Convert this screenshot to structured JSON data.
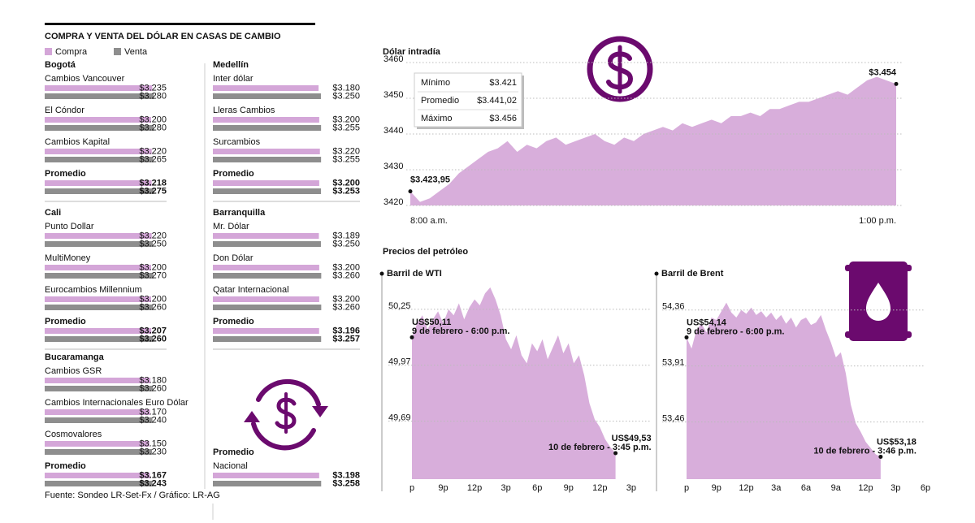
{
  "chart_data": [
    {
      "type": "hbar-groups",
      "title": "COMPRA Y VENTA DEL DÓLAR EN CASAS DE CAMBIO",
      "source": "Fuente: Sondeo LR-Set-Fx / Gráfico: LR-AG",
      "xlim": [
        0,
        3300
      ],
      "series": [
        {
          "name": "Compra",
          "color": "#d4a6d8"
        },
        {
          "name": "Venta",
          "color": "#8e8e8e"
        }
      ],
      "groups": [
        {
          "name": "Bogotá",
          "categories": [
            "Cambios Vancouver",
            "El Cóndor",
            "Cambios Kapital",
            "Promedio"
          ],
          "values": [
            [
              3235,
              3200,
              3220,
              3218
            ],
            [
              3280,
              3280,
              3265,
              3275
            ]
          ],
          "value_labels": [
            [
              "$3.235",
              "$3.200",
              "$3.220",
              "$3.218"
            ],
            [
              "$3.280",
              "$3.280",
              "$3.265",
              "$3.275"
            ]
          ]
        },
        {
          "name": "Cali",
          "categories": [
            "Punto Dollar",
            "MultiMoney",
            "Eurocambios Millennium",
            "Promedio"
          ],
          "values": [
            [
              3220,
              3200,
              3200,
              3207
            ],
            [
              3250,
              3270,
              3260,
              3260
            ]
          ],
          "value_labels": [
            [
              "$3.220",
              "$3.200",
              "$3.200",
              "$3.207"
            ],
            [
              "$3.250",
              "$3.270",
              "$3.260",
              "$3.260"
            ]
          ]
        },
        {
          "name": "Bucaramanga",
          "categories": [
            "Cambios GSR",
            "Cambios Internacionales Euro Dólar",
            "Cosmovalores",
            "Promedio"
          ],
          "values": [
            [
              3180,
              3170,
              3150,
              3167
            ],
            [
              3260,
              3240,
              3230,
              3243
            ]
          ],
          "value_labels": [
            [
              "$3.180",
              "$3.170",
              "$3.150",
              "$3.167"
            ],
            [
              "$3.260",
              "$3.240",
              "$3.230",
              "$3.243"
            ]
          ]
        },
        {
          "name": "Medellín",
          "categories": [
            "Inter dólar",
            "Lleras Cambios",
            "Surcambios",
            "Promedio"
          ],
          "values": [
            [
              3180,
              3200,
              3220,
              3200
            ],
            [
              3250,
              3255,
              3255,
              3253
            ]
          ],
          "value_labels": [
            [
              "$3.180",
              "$3.200",
              "$3.220",
              "$3.200"
            ],
            [
              "$3.250",
              "$3.255",
              "$3.255",
              "$3.253"
            ]
          ]
        },
        {
          "name": "Barranquilla",
          "categories": [
            "Mr. Dólar",
            "Don Dólar",
            "Qatar Internacional",
            "Promedio"
          ],
          "values": [
            [
              3189,
              3200,
              3200,
              3196
            ],
            [
              3250,
              3260,
              3260,
              3257
            ]
          ],
          "value_labels": [
            [
              "$3.189",
              "$3.200",
              "$3.200",
              "$3.196"
            ],
            [
              "$3.250",
              "$3.260",
              "$3.260",
              "$3.257"
            ]
          ]
        },
        {
          "name": "Promedio",
          "categories": [
            "Nacional"
          ],
          "values": [
            [
              3198
            ],
            [
              3258
            ]
          ],
          "value_labels": [
            [
              "$3.198"
            ],
            [
              "$3.258"
            ]
          ]
        }
      ]
    },
    {
      "type": "area",
      "title": "Dólar intradía",
      "color": "#d8aedb",
      "grid": true,
      "x": [
        8.0,
        8.1,
        8.2,
        8.3,
        8.4,
        8.5,
        8.6,
        8.7,
        8.8,
        8.9,
        9.0,
        9.1,
        9.2,
        9.3,
        9.4,
        9.5,
        9.6,
        9.7,
        9.8,
        9.9,
        10.0,
        10.1,
        10.2,
        10.3,
        10.4,
        10.5,
        10.6,
        10.7,
        10.8,
        10.9,
        11.0,
        11.1,
        11.2,
        11.3,
        11.4,
        11.5,
        11.6,
        11.7,
        11.8,
        11.9,
        12.0,
        12.1,
        12.2,
        12.3,
        12.4,
        12.5,
        12.6,
        12.7,
        12.8,
        12.9,
        13.0
      ],
      "values": [
        3423.95,
        3421,
        3422,
        3424,
        3426,
        3429,
        3431,
        3433,
        3435,
        3436,
        3438,
        3435,
        3437,
        3436,
        3438,
        3439,
        3437,
        3438,
        3439,
        3440,
        3438,
        3437,
        3439,
        3438,
        3440,
        3441,
        3442,
        3441,
        3443,
        3442,
        3443,
        3444,
        3443,
        3445,
        3445,
        3446,
        3445,
        3447,
        3447,
        3448,
        3449,
        3449,
        3450,
        3451,
        3452,
        3451,
        3453,
        3455,
        3456,
        3455,
        3454
      ],
      "xlim": [
        8,
        13
      ],
      "xticks": [
        {
          "value": 8,
          "label": "8:00 a.m."
        },
        {
          "value": 13,
          "label": "1:00 p.m."
        }
      ],
      "ylim": [
        3420,
        3460
      ],
      "yticks": [
        3420,
        3430,
        3440,
        3450,
        3460
      ],
      "annotations": [
        {
          "x": 8,
          "y": 3423.95,
          "label": "$3.423,95"
        },
        {
          "x": 13,
          "y": 3454,
          "label": "$3.454"
        }
      ],
      "stats": [
        [
          "Mínimo",
          "$3.421"
        ],
        [
          "Promedio",
          "$3.441,02"
        ],
        [
          "Máximo",
          "$3.456"
        ]
      ]
    },
    {
      "type": "area",
      "heading": "Precios del petróleo",
      "title": "Barril de WTI",
      "color": "#d8aedb",
      "grid": true,
      "x": [
        0,
        0.5,
        1,
        1.5,
        2,
        2.5,
        3,
        3.5,
        4,
        4.5,
        5,
        5.5,
        6,
        6.5,
        7,
        7.5,
        8,
        8.5,
        9,
        9.5,
        10,
        10.5,
        11,
        11.5,
        12,
        12.5,
        13,
        13.5,
        14,
        14.5,
        15,
        15.5,
        16,
        16.5,
        17,
        17.5,
        18,
        18.5,
        19,
        19.5
      ],
      "values": [
        50.11,
        50.18,
        50.22,
        50.15,
        50.2,
        50.24,
        50.18,
        50.25,
        50.22,
        50.28,
        50.2,
        50.26,
        50.3,
        50.27,
        50.33,
        50.36,
        50.3,
        50.22,
        50.1,
        50.05,
        50.12,
        50.02,
        49.98,
        50.08,
        50.04,
        50.1,
        50.0,
        50.06,
        50.12,
        50.03,
        50.08,
        49.98,
        50.02,
        49.92,
        49.78,
        49.7,
        49.66,
        49.6,
        49.56,
        49.53
      ],
      "xlim": [
        0,
        22.8
      ],
      "xticks": [
        {
          "value": 0,
          "label": "p"
        },
        {
          "value": 3,
          "label": "9p"
        },
        {
          "value": 6,
          "label": "12p"
        },
        {
          "value": 9,
          "label": "3p"
        },
        {
          "value": 12,
          "label": "6p"
        },
        {
          "value": 15,
          "label": "9p"
        },
        {
          "value": 18,
          "label": "12p"
        },
        {
          "value": 21,
          "label": "3p"
        }
      ],
      "ylim": [
        49.4,
        50.4
      ],
      "yticks": [
        {
          "value": 49.69,
          "label": "49,69"
        },
        {
          "value": 49.97,
          "label": "49,97"
        },
        {
          "value": 50.25,
          "label": "50,25"
        }
      ],
      "annotations": [
        {
          "x": 0,
          "y": 50.11,
          "label": "US$50,11",
          "note": "9 de febrero - 6:00 p.m."
        },
        {
          "x": 19.5,
          "y": 49.53,
          "label": "US$49,53",
          "note": "10 de febrero - 3:45 p.m."
        }
      ]
    },
    {
      "type": "area",
      "title": "Barril de Brent",
      "color": "#d8aedb",
      "grid": true,
      "x": [
        0,
        0.5,
        1,
        1.5,
        2,
        2.5,
        3,
        3.5,
        4,
        4.5,
        5,
        5.5,
        6,
        6.5,
        7,
        7.5,
        8,
        8.5,
        9,
        9.5,
        10,
        10.5,
        11,
        11.5,
        12,
        12.5,
        13,
        13.5,
        14,
        14.5,
        15,
        15.5,
        16,
        16.5,
        17,
        17.5,
        18,
        18.5,
        19,
        19.5
      ],
      "values": [
        54.14,
        54.05,
        54.2,
        54.25,
        54.18,
        54.3,
        54.28,
        54.35,
        54.42,
        54.34,
        54.3,
        54.36,
        54.33,
        54.38,
        54.32,
        54.35,
        54.3,
        54.34,
        54.28,
        54.32,
        54.25,
        54.3,
        54.22,
        54.28,
        54.3,
        54.24,
        54.26,
        54.32,
        54.2,
        54.1,
        53.98,
        54.02,
        53.85,
        53.6,
        53.45,
        53.38,
        53.3,
        53.25,
        53.2,
        53.18
      ],
      "xlim": [
        0,
        24
      ],
      "xticks": [
        {
          "value": 0,
          "label": "p"
        },
        {
          "value": 3,
          "label": "9p"
        },
        {
          "value": 6,
          "label": "12p"
        },
        {
          "value": 9,
          "label": "3a"
        },
        {
          "value": 12,
          "label": "6a"
        },
        {
          "value": 15,
          "label": "9a"
        },
        {
          "value": 18,
          "label": "12p"
        },
        {
          "value": 21,
          "label": "3p"
        },
        {
          "value": 24,
          "label": "6p"
        }
      ],
      "ylim": [
        53.0,
        54.6
      ],
      "yticks": [
        {
          "value": 53.46,
          "label": "53,46"
        },
        {
          "value": 53.91,
          "label": "53,91"
        },
        {
          "value": 54.36,
          "label": "54,36"
        }
      ],
      "annotations": [
        {
          "x": 0,
          "y": 54.14,
          "label": "US$54,14",
          "note": "9 de febrero - 6:00 p.m."
        },
        {
          "x": 19.5,
          "y": 53.18,
          "label": "US$53,18",
          "note": "10 de febrero - 3:46 p.m."
        }
      ]
    }
  ]
}
